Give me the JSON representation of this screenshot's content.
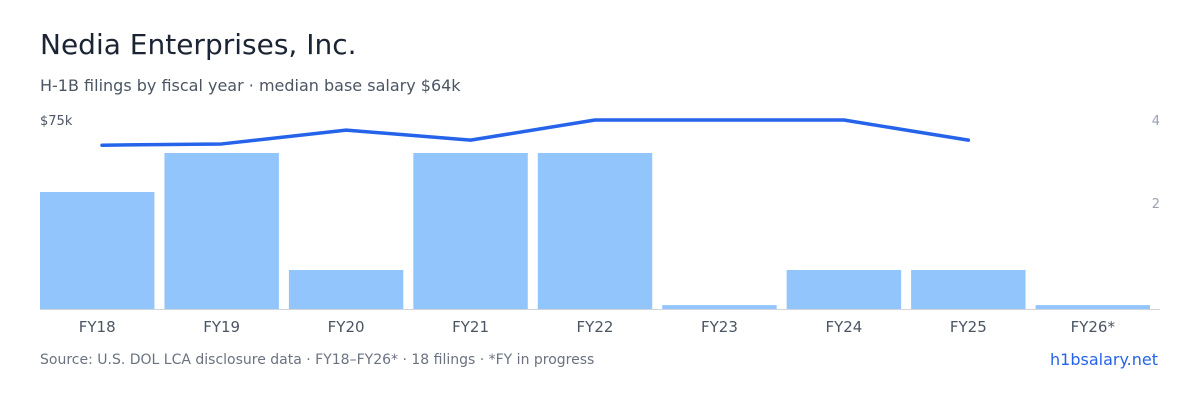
{
  "header": {
    "title": "Nedia Enterprises, Inc.",
    "subtitle": "H-1B filings by fiscal year · median base salary $64k"
  },
  "footer": {
    "source": "Source: U.S. DOL LCA disclosure data · FY18–FY26* · 18 filings · *FY in progress",
    "brand": "h1bsalary.net"
  },
  "colors": {
    "bar": "#93c5fd",
    "line": "#2563eb",
    "axis": "#d1d5db",
    "tick_text": "#4b5563",
    "right_tick_text": "#9ca3af"
  },
  "chart_data": {
    "type": "bar",
    "categories": [
      "FY18",
      "FY19",
      "FY20",
      "FY21",
      "FY22",
      "FY23",
      "FY24",
      "FY25",
      "FY26*"
    ],
    "series": [
      {
        "name": "",
        "axis": "right",
        "type": "bar",
        "values": [
          3,
          4,
          1,
          4,
          4,
          0.1,
          1,
          1,
          0.1
        ]
      },
      {
        "name": "",
        "axis": "left",
        "type": "line",
        "values": [
          65,
          65.5,
          71,
          67,
          75,
          75,
          75,
          67,
          null
        ]
      }
    ],
    "left_axis": {
      "tick_label": "$75k",
      "max": 75,
      "min": 0
    },
    "right_axis": {
      "tick_labels": [
        "4",
        "2"
      ],
      "ticks": [
        4,
        2
      ],
      "max": 4,
      "min": 0
    },
    "grid": false,
    "legend": "none"
  }
}
